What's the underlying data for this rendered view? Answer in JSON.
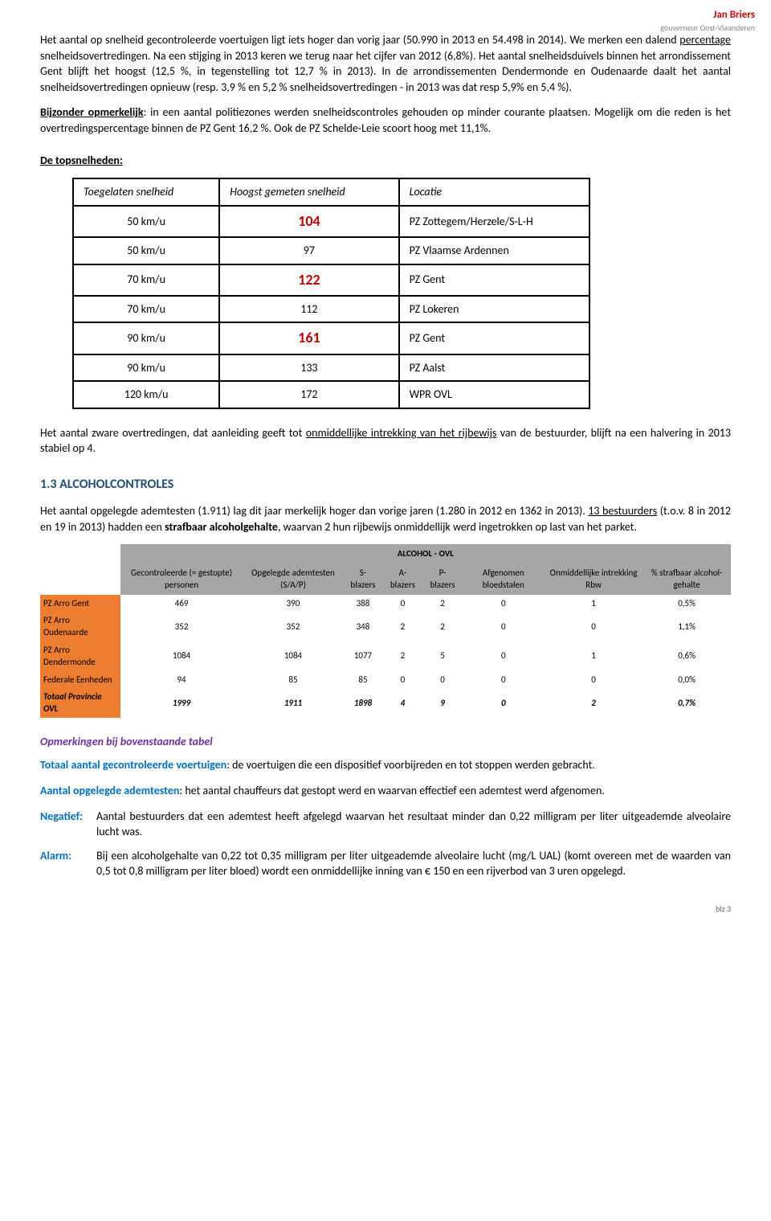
{
  "header": {
    "name": "Jan Briers",
    "subtitle": "gouverneur Oost-Vlaanderen"
  },
  "para1": {
    "t1": "Het aantal op snelheid gecontroleerde voertuigen ligt iets hoger dan vorig jaar (50.990 in 2013 en 54.498 in 2014). We merken een dalend ",
    "underline1": "percentage",
    "t2": " snelheidsovertredingen. Na een stijging in 2013 keren we terug naar het cijfer van 2012 (6,8%). Het aantal snelheidsduivels binnen het arrondissement Gent blijft het hoogst (12,5 %, in tegenstelling tot 12,7 % in 2013). In de arrondissementen Dendermonde en Oudenaarde daalt het aantal snelheidsovertredingen opnieuw (resp. 3,9 % en 5,2 % snelheidsovertredingen - in 2013 was dat resp 5,9% en 5,4 %)."
  },
  "para2": {
    "b1": "Bijzonder opmerkelijk",
    "t1": ": in een aantal politiezones werden snelheidscontroles gehouden op minder courante plaatsen. Mogelijk om die reden is het overtredingspercentage binnen de PZ Gent 16,2 %. Ook de PZ Schelde-Leie scoort hoog met 11,1%."
  },
  "topspeeds_title": "De topsnelheden:",
  "speeds": {
    "headers": [
      "Toegelaten snelheid",
      "Hoogst gemeten snelheid",
      "Locatie"
    ],
    "rows": [
      {
        "allowed": "50 km/u",
        "measured": "104",
        "highlight": true,
        "loc": "PZ Zottegem/Herzele/S-L-H"
      },
      {
        "allowed": "50 km/u",
        "measured": "97",
        "highlight": false,
        "loc": "PZ Vlaamse Ardennen"
      },
      {
        "allowed": "70 km/u",
        "measured": "122",
        "highlight": true,
        "loc": "PZ Gent"
      },
      {
        "allowed": "70 km/u",
        "measured": "112",
        "highlight": false,
        "loc": "PZ Lokeren"
      },
      {
        "allowed": "90 km/u",
        "measured": "161",
        "highlight": true,
        "loc": "PZ Gent"
      },
      {
        "allowed": "90 km/u",
        "measured": "133",
        "highlight": false,
        "loc": "PZ Aalst"
      },
      {
        "allowed": "120 km/u",
        "measured": "172",
        "highlight": false,
        "loc": "WPR OVL"
      }
    ]
  },
  "para3": {
    "t1": "Het aantal zware overtredingen, dat aanleiding geeft tot ",
    "u1": "onmiddellijke intrekking van het rijbewijs",
    "t2": " van de bestuurder, blijft na een halvering in 2013 stabiel op 4."
  },
  "section13": "1.3  ALCOHOLCONTROLES",
  "para4": {
    "t1": "Het aantal opgelegde ademtesten (1.911) lag dit jaar merkelijk hoger dan vorige jaren (1.280 in 2012 en 1362 in 2013). ",
    "u1": "13 bestuurders",
    "t2": " (t.o.v. 8 in 2012 en 19 in 2013) hadden een ",
    "b1": "strafbaar alcoholgehalte",
    "t3": ", waarvan 2 hun rijbewijs onmiddellijk werd ingetrokken op last van het parket."
  },
  "alcohol": {
    "title": "ALCOHOL - OVL",
    "headers": [
      "Gecontroleerde (= gestopte) personen",
      "Opgelegde ademtesten (S/A/P)",
      "S-blazers",
      "A-blazers",
      "P-blazers",
      "Afgenomen bloedstalen",
      "Onmiddellijke intrekking Rbw",
      "% strafbaar alcohol-gehalte"
    ],
    "rows": [
      {
        "label": "PZ Arro Gent",
        "cells": [
          "469",
          "390",
          "388",
          "0",
          "2",
          "0",
          "1",
          "0,5%"
        ]
      },
      {
        "label": "PZ Arro Oudenaarde",
        "cells": [
          "352",
          "352",
          "348",
          "2",
          "2",
          "0",
          "0",
          "1,1%"
        ]
      },
      {
        "label": "PZ Arro Dendermonde",
        "cells": [
          "1084",
          "1084",
          "1077",
          "2",
          "5",
          "0",
          "1",
          "0,6%"
        ]
      },
      {
        "label": "Federale Eenheden",
        "cells": [
          "94",
          "85",
          "85",
          "0",
          "0",
          "0",
          "0",
          "0,0%"
        ]
      }
    ],
    "total": {
      "label": "Totaal Provincie OVL",
      "cells": [
        "1999",
        "1911",
        "1898",
        "4",
        "9",
        "0",
        "2",
        "0,7%"
      ]
    }
  },
  "remarks_title": "Opmerkingen bij bovenstaande tabel",
  "rem1": {
    "term": "Totaal aantal gecontroleerde voertuigen",
    "text": ": de voertuigen die een dispositief voorbijreden en tot stoppen werden gebracht."
  },
  "rem2": {
    "term": "Aantal opgelegde ademtesten",
    "text": ": het aantal chauffeurs dat gestopt werd en waarvan effectief een ademtest werd afgenomen."
  },
  "rem3": {
    "term": "Negatief:",
    "text": "Aantal bestuurders dat een ademtest heeft afgelegd waarvan het resultaat minder dan 0,22 milligram per liter uitgeademde alveolaire lucht was."
  },
  "rem4": {
    "term": "Alarm:",
    "text": "Bij een alcoholgehalte van 0,22 tot 0,35 milligram per liter uitgeademde alveolaire lucht (mg/L UAL) (komt overeen met de waarden van 0,5 tot 0,8 milligram per liter bloed) wordt een onmiddellijke inning van € 150 en een rijverbod van 3 uren opgelegd."
  },
  "pagenum": "blz 3"
}
